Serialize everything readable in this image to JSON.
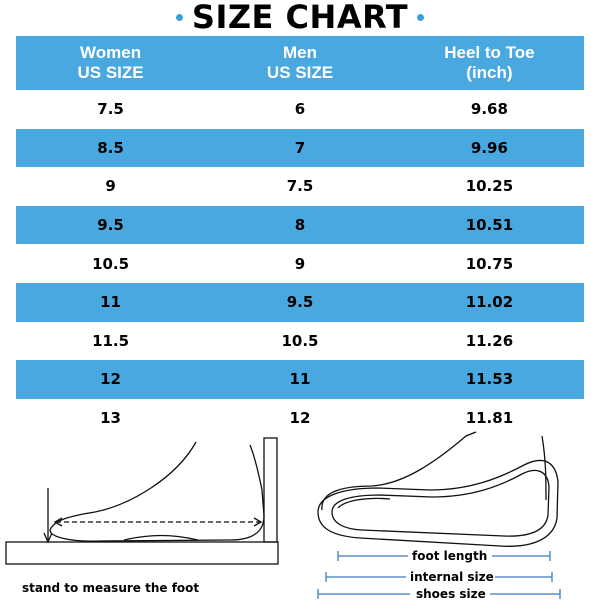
{
  "title": "SIZE CHART",
  "accent_color": "#4aa8e0",
  "table": {
    "headers": [
      [
        "Women",
        "US SIZE"
      ],
      [
        "Men",
        "US SIZE"
      ],
      [
        "Heel to Toe",
        "(inch)"
      ]
    ],
    "rows": [
      [
        "7.5",
        "6",
        "9.68"
      ],
      [
        "8.5",
        "7",
        "9.96"
      ],
      [
        "9",
        "7.5",
        "10.25"
      ],
      [
        "9.5",
        "8",
        "10.51"
      ],
      [
        "10.5",
        "9",
        "10.75"
      ],
      [
        "11",
        "9.5",
        "11.02"
      ],
      [
        "11.5",
        "10.5",
        "11.26"
      ],
      [
        "12",
        "11",
        "11.53"
      ],
      [
        "13",
        "12",
        "11.81"
      ]
    ]
  },
  "illustrations": {
    "left_caption": "stand to measure the foot",
    "right_labels": {
      "foot_length": "foot length",
      "internal_size": "internal size",
      "shoes_size": "shoes size"
    }
  }
}
